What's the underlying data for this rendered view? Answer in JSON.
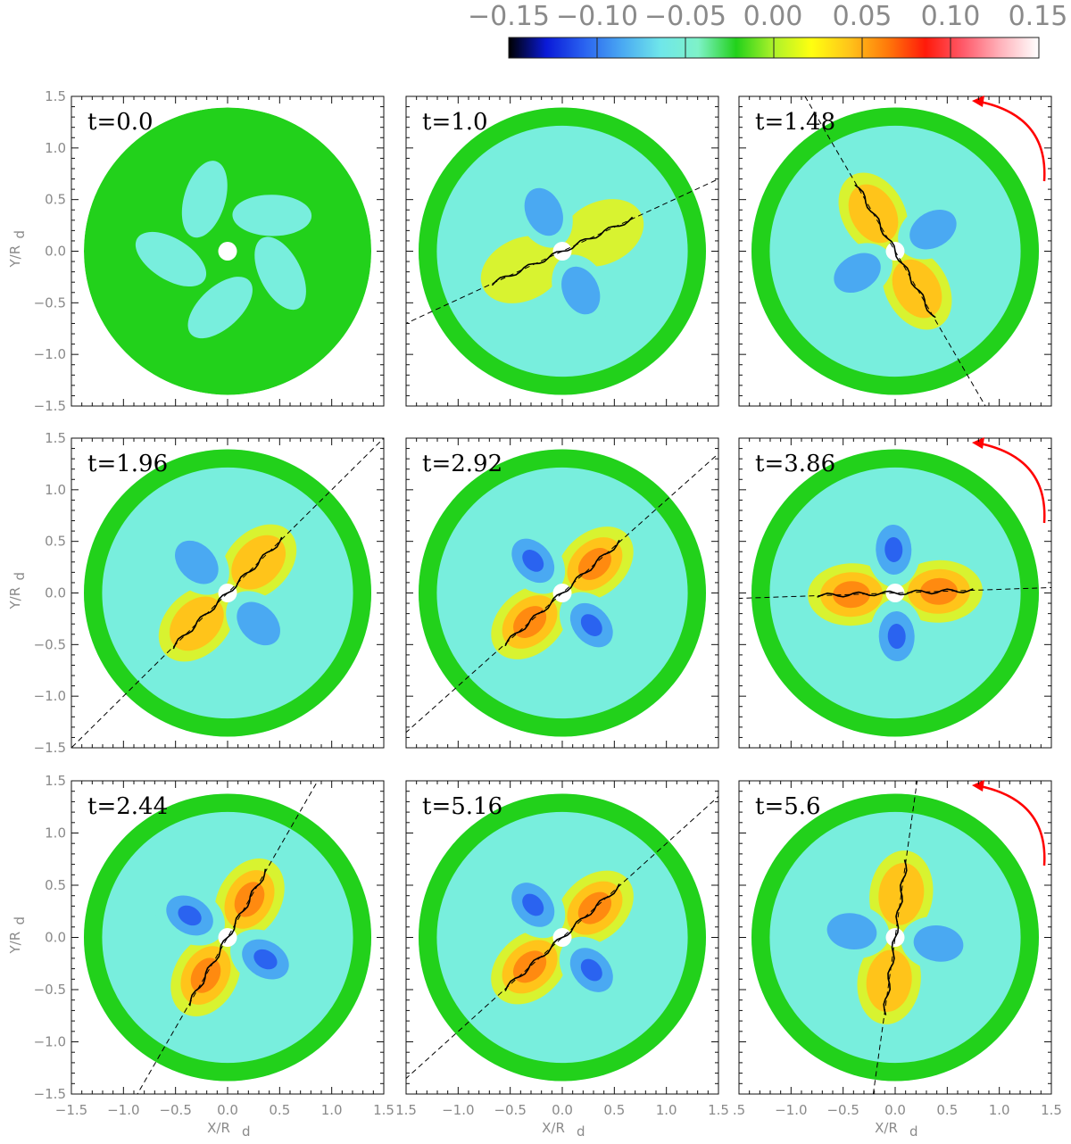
{
  "chart_data": {
    "type": "heatmap",
    "colorbar": {
      "ticks": [
        "−0.15",
        "−0.10",
        "−0.05",
        "0.00",
        "0.05",
        "0.10",
        "0.15"
      ],
      "range": [
        -0.15,
        0.15
      ],
      "colors": [
        "#000000",
        "#0a1ad8",
        "#2a63f0",
        "#4aa9f2",
        "#6fe6ea",
        "#7ef2c8",
        "#22d11b",
        "#aef22a",
        "#ffff10",
        "#ffc41a",
        "#ff7a0a",
        "#ff1a0a",
        "#ff5a6a",
        "#ffb4bc",
        "#ffffff"
      ],
      "level_colors": [
        "#2a63f0",
        "#4aa9f2",
        "#78eedd",
        "#22d11b",
        "#d8f330",
        "#ffc41a",
        "#ff8a10",
        "#ff3a10"
      ]
    },
    "x_axis": {
      "label": "X/R",
      "label_subscript": "d",
      "range": [
        -1.5,
        1.5
      ],
      "tick_labels_panel1": [
        "−1.5",
        "−1.0",
        "−0.5",
        "0.0",
        "0.5",
        "1.0",
        "1.5"
      ],
      "tick_labels_panel2": [
        "1.5",
        "−1.0",
        "−0.5",
        "0.0",
        "0.5",
        "1.0",
        "1.5"
      ],
      "tick_labels_panel3": [
        ".5",
        "−1.0",
        "−0.5",
        "0.0",
        "0.5",
        "1.0",
        "1.5"
      ]
    },
    "y_axis": {
      "label": "Y/R",
      "label_subscript": "d",
      "range": [
        -1.5,
        1.5
      ],
      "tick_labels": [
        "1.5",
        "1.0",
        "0.5",
        "0.0",
        "−0.5",
        "−1.0",
        "−1.5"
      ],
      "tick_values": [
        1.5,
        1.0,
        0.5,
        0.0,
        -0.5,
        -1.0,
        -1.5
      ]
    },
    "panels": [
      {
        "label": "t=0.0",
        "time": 0.0,
        "pattern": "initial",
        "arms": 2,
        "amplitude": 0.0,
        "angle_deg": 0,
        "dashed_line": false,
        "rotation_arrow": false
      },
      {
        "label": "t=1.0",
        "time": 1.0,
        "pattern": "bar",
        "arms": 2,
        "amplitude": 0.05,
        "angle_deg": 25,
        "dashed_line": true,
        "rotation_arrow": false
      },
      {
        "label": "t=1.48",
        "time": 1.48,
        "pattern": "bar",
        "arms": 2,
        "amplitude": 0.055,
        "angle_deg": 120,
        "dashed_line": true,
        "rotation_arrow": true
      },
      {
        "label": "t=1.96",
        "time": 1.96,
        "pattern": "bar",
        "arms": 2,
        "amplitude": 0.06,
        "angle_deg": 45,
        "dashed_line": true,
        "rotation_arrow": false
      },
      {
        "label": "t=2.92",
        "time": 2.92,
        "pattern": "bar",
        "arms": 2,
        "amplitude": 0.09,
        "angle_deg": 42,
        "dashed_line": true,
        "rotation_arrow": false
      },
      {
        "label": "t=3.86",
        "time": 3.86,
        "pattern": "bar",
        "arms": 2,
        "amplitude": 0.12,
        "angle_deg": 2,
        "dashed_line": true,
        "rotation_arrow": true
      },
      {
        "label": "t=2.44",
        "time": 2.44,
        "pattern": "bar",
        "arms": 2,
        "amplitude": 0.11,
        "angle_deg": 60,
        "dashed_line": true,
        "rotation_arrow": false
      },
      {
        "label": "t=5.16",
        "time": 5.16,
        "pattern": "bar",
        "arms": 2,
        "amplitude": 0.1,
        "angle_deg": 42,
        "dashed_line": true,
        "rotation_arrow": false
      },
      {
        "label": "t=5.6",
        "time": 5.6,
        "pattern": "bar",
        "arms": 2,
        "amplitude": 0.08,
        "angle_deg": 82,
        "dashed_line": true,
        "rotation_arrow": true
      }
    ]
  }
}
